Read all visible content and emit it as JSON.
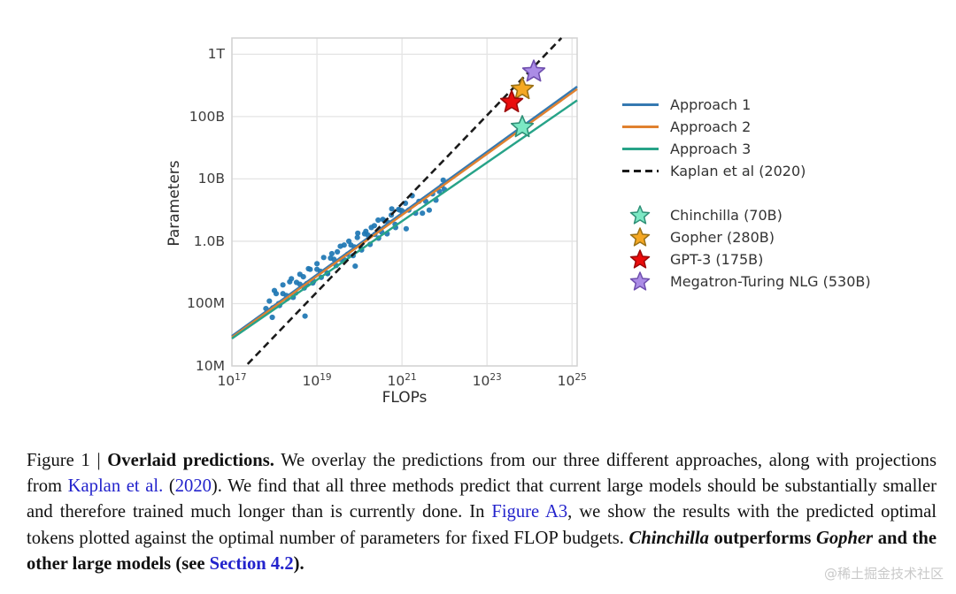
{
  "watermark": "@稀土掘金技术社区",
  "chart_data": {
    "type": "scatter",
    "title": "",
    "xlabel": "FLOPs",
    "ylabel": "Parameters",
    "grid": true,
    "legend_position": "right",
    "axes": {
      "xlim": [
        17,
        25.12
      ],
      "ylim": [
        7,
        12.26
      ],
      "xscale": "log10",
      "yscale": "log10"
    },
    "x_ticks": [
      {
        "base": "10",
        "exp": "17",
        "log": 17
      },
      {
        "base": "10",
        "exp": "19",
        "log": 19
      },
      {
        "base": "10",
        "exp": "21",
        "log": 21
      },
      {
        "base": "10",
        "exp": "23",
        "log": 23
      },
      {
        "base": "10",
        "exp": "25",
        "log": 25
      }
    ],
    "y_ticks": [
      {
        "label": "1T",
        "log": 12
      },
      {
        "label": "100B",
        "log": 11
      },
      {
        "label": "10B",
        "log": 10
      },
      {
        "label": "1.0B",
        "log": 9
      },
      {
        "label": "100M",
        "log": 8
      },
      {
        "label": "10M",
        "log": 7
      }
    ],
    "lines": [
      {
        "name": "Approach 1",
        "color": "#3579b1",
        "dashed": false,
        "x": [
          17,
          25.12
        ],
        "y": [
          7.48,
          11.48
        ]
      },
      {
        "name": "Approach 2",
        "color": "#e0812f",
        "dashed": false,
        "x": [
          17,
          25.12
        ],
        "y": [
          7.46,
          11.44
        ]
      },
      {
        "name": "Approach 3",
        "color": "#27a388",
        "dashed": false,
        "x": [
          17,
          25.12
        ],
        "y": [
          7.44,
          11.26
        ]
      },
      {
        "name": "Kaplan et al (2020)",
        "color": "#1a1a1a",
        "dashed": true,
        "x": [
          17.37,
          24.75
        ],
        "y": [
          7.03,
          12.26
        ]
      }
    ],
    "models": [
      {
        "name": "Chinchilla (70B)",
        "flops_log10": 23.83,
        "params_log10": 10.83,
        "fill": "#7ce8c4",
        "stroke": "#2f9077"
      },
      {
        "name": "Gopher (280B)",
        "flops_log10": 23.83,
        "params_log10": 11.44,
        "fill": "#f5a823",
        "stroke": "#9a7116"
      },
      {
        "name": "GPT-3 (175B)",
        "flops_log10": 23.58,
        "params_log10": 11.23,
        "fill": "#ea0c0c",
        "stroke": "#9c0808"
      },
      {
        "name": "Megatron-Turing NLG (530B)",
        "flops_log10": 24.1,
        "params_log10": 11.72,
        "fill": "#ab8ce6",
        "stroke": "#6f4fae"
      }
    ],
    "scatter": {
      "name": "training-runs",
      "color": "#1f77b4",
      "points": [
        [
          17.8,
          7.92
        ],
        [
          17.88,
          8.04
        ],
        [
          17.96,
          7.93
        ],
        [
          18.04,
          8.16
        ],
        [
          18.12,
          7.97
        ],
        [
          18.2,
          8.16
        ],
        [
          18.28,
          8.13
        ],
        [
          18.36,
          8.35
        ],
        [
          18.44,
          8.1
        ],
        [
          18.52,
          8.34
        ],
        [
          18.6,
          8.31
        ],
        [
          18.68,
          8.43
        ],
        [
          18.76,
          8.32
        ],
        [
          18.84,
          8.55
        ],
        [
          18.92,
          8.36
        ],
        [
          19.0,
          8.55
        ],
        [
          19.08,
          8.52
        ],
        [
          19.16,
          8.74
        ],
        [
          19.24,
          8.49
        ],
        [
          19.32,
          8.73
        ],
        [
          19.4,
          8.71
        ],
        [
          19.48,
          8.83
        ],
        [
          19.56,
          8.71
        ],
        [
          19.64,
          8.94
        ],
        [
          19.72,
          8.79
        ],
        [
          19.8,
          8.94
        ],
        [
          19.88,
          8.91
        ],
        [
          19.96,
          9.13
        ],
        [
          20.04,
          8.88
        ],
        [
          20.12,
          9.12
        ],
        [
          20.2,
          9.1
        ],
        [
          20.28,
          9.22
        ],
        [
          20.36,
          9.11
        ],
        [
          20.44,
          9.34
        ],
        [
          20.52,
          9.15
        ],
        [
          20.6,
          9.33
        ],
        [
          20.68,
          9.3
        ],
        [
          20.76,
          9.52
        ],
        [
          20.84,
          9.27
        ],
        [
          20.92,
          9.51
        ],
        [
          21.0,
          9.49
        ],
        [
          21.08,
          9.61
        ],
        [
          21.16,
          9.5
        ],
        [
          21.24,
          9.73
        ],
        [
          21.32,
          9.45
        ],
        [
          21.4,
          9.64
        ],
        [
          21.48,
          9.45
        ],
        [
          21.56,
          9.64
        ],
        [
          21.64,
          9.5
        ],
        [
          21.72,
          9.76
        ],
        [
          21.8,
          9.66
        ],
        [
          21.88,
          9.8
        ],
        [
          21.94,
          9.89
        ],
        [
          21.97,
          9.98
        ],
        [
          22.0,
          9.83
        ],
        [
          19.25,
          8.48
        ],
        [
          19.35,
          8.8
        ],
        [
          19.45,
          8.61
        ],
        [
          19.55,
          8.92
        ],
        [
          19.65,
          8.7
        ],
        [
          19.75,
          9.0
        ],
        [
          19.85,
          8.77
        ],
        [
          19.95,
          9.06
        ],
        [
          20.05,
          8.86
        ],
        [
          20.15,
          9.16
        ],
        [
          20.25,
          8.95
        ],
        [
          20.35,
          9.25
        ],
        [
          20.45,
          9.05
        ],
        [
          20.55,
          9.35
        ],
        [
          20.65,
          9.12
        ],
        [
          20.75,
          9.42
        ],
        [
          20.85,
          9.22
        ],
        [
          20.95,
          9.5
        ],
        [
          19.1,
          8.42
        ],
        [
          19.0,
          8.64
        ],
        [
          18.9,
          8.33
        ],
        [
          18.8,
          8.56
        ],
        [
          18.7,
          8.25
        ],
        [
          18.6,
          8.47
        ],
        [
          18.5,
          8.17
        ],
        [
          18.4,
          8.4
        ],
        [
          18.3,
          8.08
        ],
        [
          18.2,
          8.3
        ],
        [
          18.1,
          8.0
        ],
        [
          18.0,
          8.21
        ],
        [
          18.72,
          7.8
        ],
        [
          19.9,
          8.6
        ],
        [
          21.1,
          9.2
        ],
        [
          17.95,
          7.78
        ]
      ]
    }
  },
  "caption": {
    "figure_label": "Figure 1 | ",
    "bold_title": "Overlaid predictions.",
    "seg1": " We overlay the predictions from our three different approaches, along with projections from ",
    "link_kaplan": "Kaplan et al.",
    "seg2": " (",
    "link_year": "2020",
    "seg3": "). We find that all three methods predict that current large models should be substantially smaller and therefore trained much longer than is currently done. In ",
    "link_figure_a3": "Figure A3",
    "seg4": ", we show the results with the predicted optimal tokens plotted against the optimal number of parameters for fixed FLOP budgets. ",
    "bold_chinchilla": "Chinchilla",
    "bold_outperforms": " outperforms ",
    "bold_gopher": "Gopher",
    "bold_rest": " and the other large models (see ",
    "link_section": "Section 4.2",
    "bold_end": ")."
  }
}
